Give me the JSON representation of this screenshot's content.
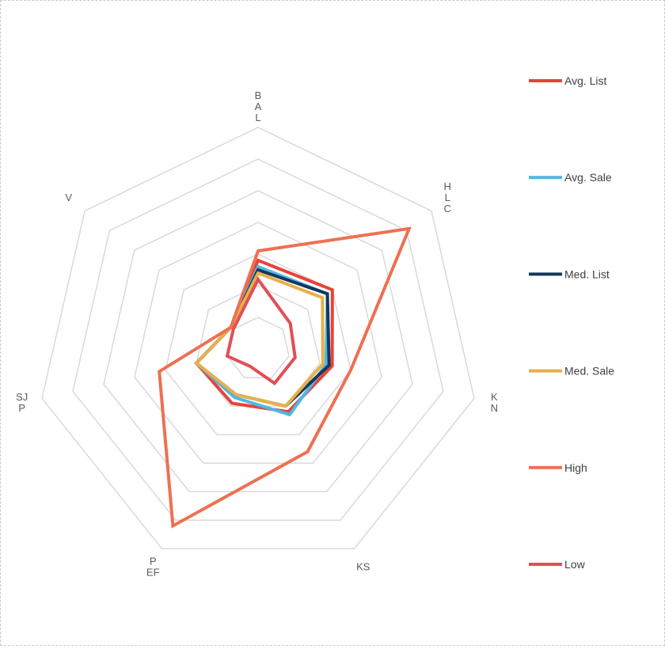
{
  "chart_data": {
    "type": "radar",
    "axes": [
      "BAL",
      "HLC",
      "KN",
      "KS",
      "PEF",
      "SJP",
      "V"
    ],
    "axis_labels": [
      [
        "B",
        "A",
        "L"
      ],
      [
        "H",
        "L",
        "C"
      ],
      [
        "K",
        "N"
      ],
      [
        "KS"
      ],
      [
        "P",
        "EF"
      ],
      [
        "SJ",
        "P"
      ],
      [
        "V"
      ]
    ],
    "rings": 7,
    "rmax": 7,
    "grid": true,
    "legend_position": "right",
    "series": [
      {
        "name": "Avg. List",
        "color": "#e8423a",
        "values": [
          2.8,
          3.0,
          2.4,
          2.2,
          1.9,
          2.0,
          1.1
        ]
      },
      {
        "name": "Avg. Sale",
        "color": "#4fb8e4",
        "values": [
          2.6,
          2.8,
          2.2,
          2.3,
          1.7,
          2.0,
          1.1
        ]
      },
      {
        "name": "Med. List",
        "color": "#14375e",
        "values": [
          2.5,
          2.8,
          2.3,
          2.0,
          1.6,
          2.0,
          1.1
        ]
      },
      {
        "name": "Med. Sale",
        "color": "#e8b04a",
        "values": [
          2.4,
          2.6,
          2.1,
          2.0,
          1.6,
          2.0,
          1.1
        ]
      },
      {
        "name": "High",
        "color": "#ee7052",
        "values": [
          3.1,
          6.1,
          3.0,
          3.6,
          6.2,
          3.2,
          1.1
        ]
      },
      {
        "name": "Low",
        "color": "#e14f55",
        "values": [
          2.2,
          1.3,
          1.2,
          1.2,
          0.6,
          1.0,
          1.0
        ]
      }
    ]
  }
}
